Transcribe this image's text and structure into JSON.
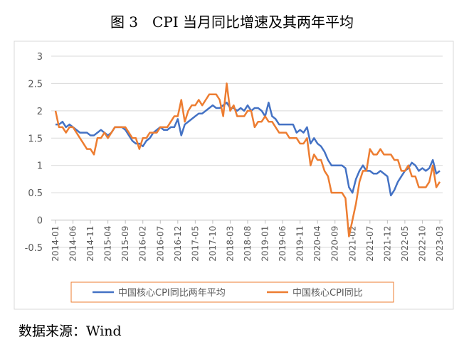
{
  "chart_data": {
    "type": "line",
    "title": "图 3　CPI 当月同比增速及其两年平均",
    "source": "数据来源：Wind",
    "categories": [
      "2014-01",
      null,
      null,
      null,
      null,
      "2014-06",
      null,
      null,
      null,
      null,
      "2014-11",
      null,
      null,
      null,
      null,
      "2015-04",
      null,
      null,
      null,
      null,
      "2015-09",
      null,
      null,
      null,
      null,
      "2016-02",
      null,
      null,
      null,
      null,
      "2016-07",
      null,
      null,
      null,
      null,
      "2016-12",
      null,
      null,
      null,
      null,
      "2017-05",
      null,
      null,
      null,
      null,
      "2017-10",
      null,
      null,
      null,
      null,
      "2018-03",
      null,
      null,
      null,
      null,
      "2018-08",
      null,
      null,
      null,
      null,
      "2019-01",
      null,
      null,
      null,
      null,
      "2019-06",
      null,
      null,
      null,
      null,
      "2019-11",
      null,
      null,
      null,
      null,
      "2020-04",
      null,
      null,
      null,
      null,
      "2020-09",
      null,
      null,
      null,
      null,
      "2021-02",
      null,
      null,
      null,
      null,
      "2021-07",
      null,
      null,
      null,
      null,
      "2021-12",
      null,
      null,
      null,
      null,
      "2022-05",
      null,
      null,
      null,
      null,
      "2022-10",
      null,
      null,
      null,
      null,
      "2023-03"
    ],
    "series": [
      {
        "name": "中国核心CPI同比两年平均",
        "color": "#4472c4",
        "values": [
          1.75,
          1.75,
          1.8,
          1.7,
          1.75,
          1.7,
          1.65,
          1.6,
          1.6,
          1.6,
          1.55,
          1.55,
          1.6,
          1.65,
          1.6,
          1.55,
          1.6,
          1.7,
          1.7,
          1.7,
          1.65,
          1.55,
          1.45,
          1.4,
          1.4,
          1.35,
          1.45,
          1.5,
          1.6,
          1.65,
          1.7,
          1.65,
          1.65,
          1.7,
          1.7,
          1.85,
          1.55,
          1.75,
          1.8,
          1.85,
          1.9,
          1.95,
          1.95,
          2.0,
          2.05,
          2.1,
          2.05,
          2.05,
          2.1,
          2.15,
          2.05,
          2.05,
          2.0,
          2.05,
          2.0,
          2.1,
          2.0,
          2.05,
          2.05,
          2.0,
          1.9,
          2.15,
          1.9,
          1.85,
          1.75,
          1.75,
          1.75,
          1.75,
          1.75,
          1.6,
          1.65,
          1.6,
          1.7,
          1.4,
          1.5,
          1.4,
          1.35,
          1.25,
          1.1,
          1.0,
          1.0,
          1.0,
          1.0,
          0.95,
          0.6,
          0.5,
          0.75,
          0.9,
          1.0,
          0.9,
          0.9,
          0.85,
          0.85,
          0.9,
          0.85,
          0.8,
          0.45,
          0.55,
          0.7,
          0.8,
          0.9,
          0.95,
          1.05,
          1.0,
          0.9,
          0.95,
          0.9,
          0.95,
          1.1,
          0.85,
          0.9
        ]
      },
      {
        "name": "中国核心CPI同比",
        "color": "#ed7d31",
        "values": [
          2.0,
          1.7,
          1.7,
          1.6,
          1.7,
          1.7,
          1.6,
          1.5,
          1.4,
          1.3,
          1.3,
          1.2,
          1.5,
          1.5,
          1.6,
          1.5,
          1.6,
          1.7,
          1.7,
          1.7,
          1.7,
          1.6,
          1.5,
          1.5,
          1.3,
          1.5,
          1.5,
          1.6,
          1.6,
          1.6,
          1.7,
          1.7,
          1.7,
          1.8,
          1.9,
          1.9,
          2.2,
          1.8,
          2.0,
          2.1,
          2.1,
          2.2,
          2.1,
          2.2,
          2.3,
          2.3,
          2.3,
          2.2,
          1.9,
          2.5,
          2.0,
          2.1,
          1.9,
          1.9,
          1.9,
          2.0,
          2.0,
          1.7,
          1.8,
          1.8,
          1.9,
          1.8,
          1.8,
          1.7,
          1.6,
          1.6,
          1.6,
          1.5,
          1.5,
          1.5,
          1.4,
          1.4,
          1.5,
          1.0,
          1.2,
          1.1,
          1.1,
          0.9,
          0.8,
          0.5,
          0.5,
          0.5,
          0.5,
          0.4,
          -0.3,
          0.0,
          0.3,
          0.7,
          0.9,
          0.9,
          1.3,
          1.2,
          1.2,
          1.3,
          1.2,
          1.2,
          1.2,
          1.1,
          1.1,
          0.9,
          0.9,
          1.0,
          0.8,
          0.8,
          0.6,
          0.6,
          0.6,
          0.7,
          1.0,
          0.6,
          0.7
        ]
      }
    ],
    "ylim": [
      -0.5,
      3
    ],
    "yticks": [
      -0.5,
      0,
      0.5,
      1,
      1.5,
      2,
      2.5,
      3
    ],
    "grid": true,
    "legend": "bottom"
  }
}
